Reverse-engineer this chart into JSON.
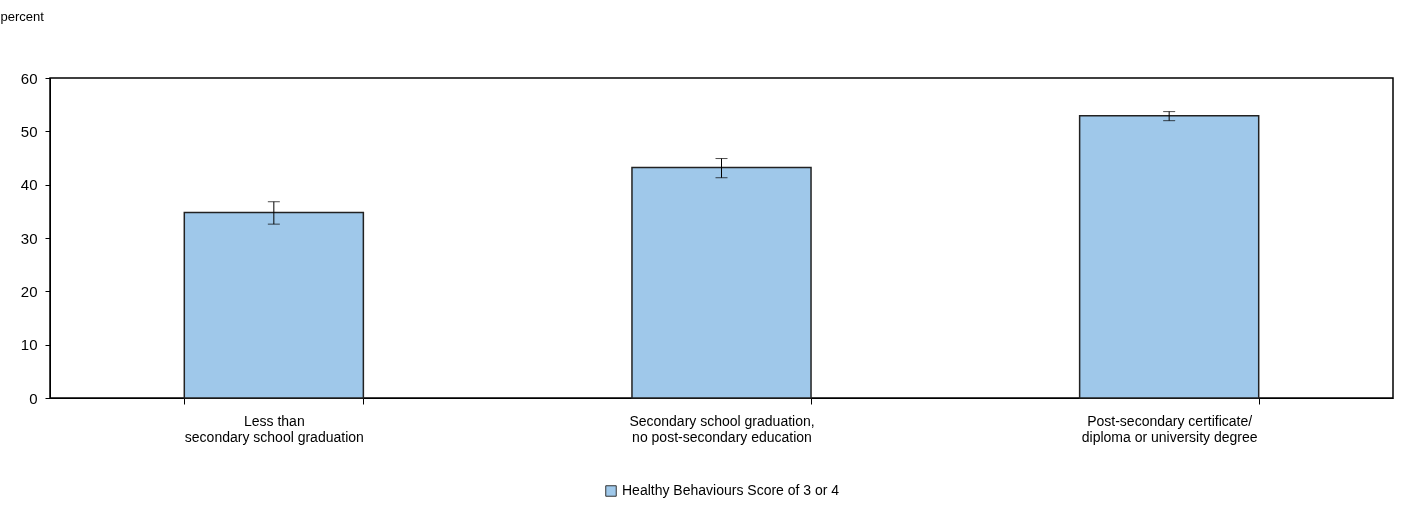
{
  "chart_data": {
    "type": "bar",
    "ylabel": "percent",
    "categories": [
      "Less than\nsecondary school graduation",
      "Secondary school graduation,\nno post-secondary education",
      "Post-secondary certificate/\ndiploma or university degree"
    ],
    "series": [
      {
        "name": "Healthy Behaviours Score of 3 or 4",
        "color": "#9fc8ea",
        "values": [
          34.8,
          43.2,
          52.9
        ],
        "errors": [
          [
            32.6,
            36.8
          ],
          [
            41.3,
            44.9
          ],
          [
            52.0,
            53.7
          ]
        ]
      }
    ],
    "ylim": [
      0,
      60
    ],
    "yticks": [
      0,
      10,
      20,
      30,
      40,
      50,
      60
    ],
    "grid": false,
    "legend": "bottom"
  }
}
